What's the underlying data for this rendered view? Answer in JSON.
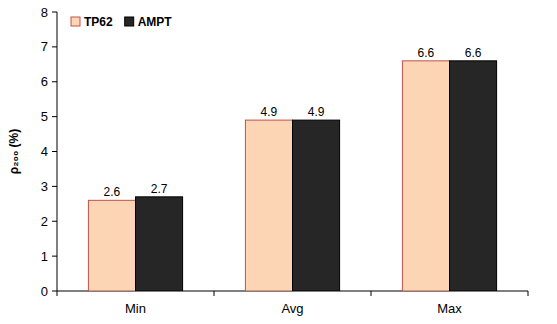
{
  "chart_data": {
    "type": "bar",
    "y_label": "ρ₂₀₀ (%)",
    "categories": [
      "Min",
      "Avg",
      "Max"
    ],
    "series": [
      {
        "name": "TP62",
        "color": "#fcd5b5",
        "values": [
          2.6,
          4.9,
          6.6
        ]
      },
      {
        "name": "AMPT",
        "color": "#262626",
        "values": [
          2.7,
          4.9,
          6.6
        ]
      }
    ],
    "ylim": [
      0,
      8
    ],
    "yticks": [
      0,
      1,
      2,
      3,
      4,
      5,
      6,
      7,
      8
    ],
    "grid": false,
    "legend": "upper left",
    "data_labels": true
  }
}
